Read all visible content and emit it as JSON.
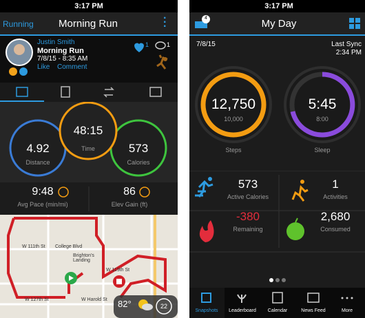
{
  "left": {
    "status_time": "3:17 PM",
    "header": {
      "back": "Running",
      "title": "Morning Run"
    },
    "profile": {
      "name": "Justin Smith",
      "activity": "Morning Run",
      "date": "7/8/15 - 8:35 AM",
      "like": "Like",
      "comment": "Comment",
      "likes": "1",
      "comments": "1"
    },
    "stats": [
      {
        "value": "4.92",
        "label": "Distance"
      },
      {
        "value": "48:15",
        "label": "Time"
      },
      {
        "value": "573",
        "label": "Calories"
      }
    ],
    "metrics": [
      {
        "value": "9:48",
        "label": "Avg Pace (min/mi)"
      },
      {
        "value": "86",
        "label": "Elev Gain (ft)"
      }
    ],
    "map": {
      "labels": [
        "W 111th St",
        "College Blvd",
        "Brighton's Landing",
        "W 119th St",
        "W Harold St",
        "W 127th St"
      ],
      "temperature": "82°",
      "badge": "22"
    }
  },
  "right": {
    "status_time": "3:17 PM",
    "header": {
      "title": "My Day",
      "badge": "4"
    },
    "date": "7/8/15",
    "sync_label": "Last Sync",
    "sync_time": "2:34 PM",
    "rings": [
      {
        "value": "12,750",
        "goal": "10,000",
        "label": "Steps"
      },
      {
        "value": "5:45",
        "goal": "8:00",
        "label": "Sleep"
      }
    ],
    "tiles": [
      {
        "value": "573",
        "label": "Active Calories"
      },
      {
        "value": "1",
        "label": "Activities"
      },
      {
        "value": "-380",
        "label": "Remaining"
      },
      {
        "value": "2,680",
        "label": "Consumed"
      }
    ],
    "nav": [
      "Snapshots",
      "Leaderboard",
      "Calendar",
      "News Feed",
      "More"
    ]
  }
}
